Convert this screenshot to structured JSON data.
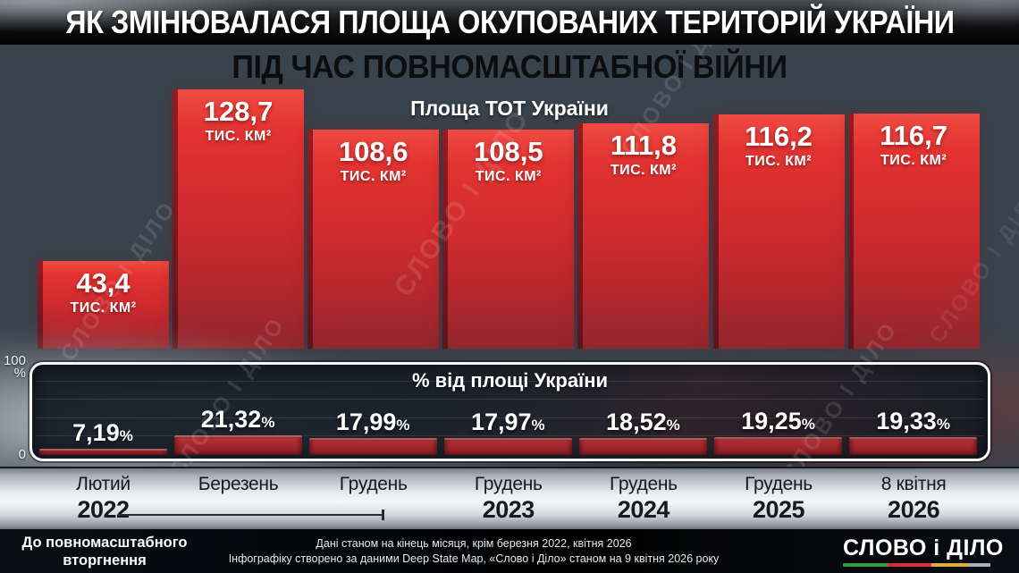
{
  "header": {
    "title": "ЯК ЗМІНЮВАЛАСЯ ПЛОЩА ОКУПОВАНИХ ТЕРИТОРІЙ УКРАЇНИ",
    "subtitle": "ПІД ЧАС ПОВНОМАСШТАБНОЇ ВІЙНИ"
  },
  "chart": {
    "label": "Площа ТОТ України",
    "unit": "тис. км²",
    "panel_title": "% від площі України",
    "pct_suffix": "%",
    "axis": {
      "hundred": "100",
      "percent_sign": "%",
      "zero": "0"
    },
    "watermark": "СЛОВО І ДІЛО",
    "bars": [
      {
        "area": "43,4",
        "pct": "7,19",
        "month": "Лютий",
        "year": "2022"
      },
      {
        "area": "128,7",
        "pct": "21,32",
        "month": "Березень",
        "year": ""
      },
      {
        "area": "108,6",
        "pct": "17,99",
        "month": "Грудень",
        "year": ""
      },
      {
        "area": "108,5",
        "pct": "17,97",
        "month": "Грудень",
        "year": "2023"
      },
      {
        "area": "111,8",
        "pct": "18,52",
        "month": "Грудень",
        "year": "2024"
      },
      {
        "area": "116,2",
        "pct": "19,25",
        "month": "Грудень",
        "year": "2025"
      },
      {
        "area": "116,7",
        "pct": "19,33",
        "month": "8 квітня",
        "year": "2026"
      }
    ]
  },
  "chart_data": {
    "type": "bar",
    "title": "Площа ТОТ України",
    "subtitle_panel": "% від площі України",
    "categories": [
      "Лютий 2022",
      "Березень 2022",
      "Грудень 2022",
      "Грудень 2023",
      "Грудень 2024",
      "Грудень 2025",
      "8 квітня 2026"
    ],
    "series": [
      {
        "name": "Площа ТОТ України, тис. км²",
        "values": [
          43.4,
          128.7,
          108.6,
          108.5,
          111.8,
          116.2,
          116.7
        ]
      },
      {
        "name": "% від площі України",
        "values": [
          7.19,
          21.32,
          17.99,
          17.97,
          18.52,
          19.25,
          19.33
        ]
      }
    ],
    "ylabel": "тис. км²",
    "ylim": [
      0,
      150
    ],
    "pct_axis": {
      "min": 0,
      "max": 100,
      "tick_labels": [
        "100 %",
        "0"
      ]
    },
    "legend_position": "none",
    "grid": "faint horizontal lines in percent panel",
    "colors": {
      "bar_red": "#d02b2e",
      "mini_bar_red": "#97232a",
      "panel_bg": "#151d27",
      "accent_border": "#f2f4f6"
    }
  },
  "footer": {
    "pre_invasion_note": "До повномасштабного вторгнення",
    "note1": "Дані станом на кінець місяця, крім березня 2022, квітня 2026",
    "note2": "Інфографіку створено за даними Deep State Map, «Слово і Діло» станом на 9 квітня 2026 року",
    "logo": "СЛОВО і ДІЛО"
  }
}
